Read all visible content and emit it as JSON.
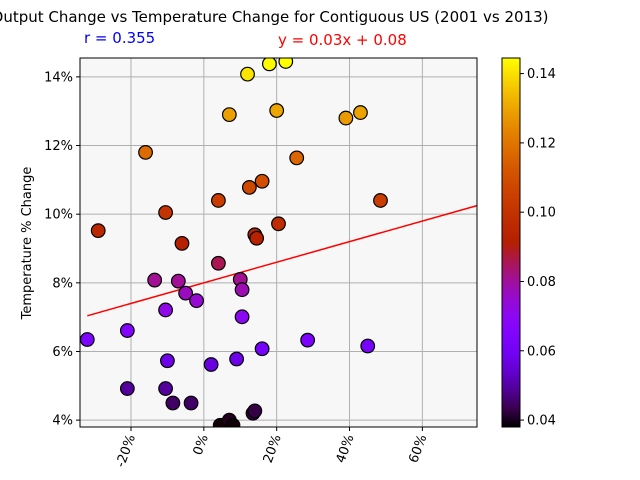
{
  "chart_data": {
    "type": "scatter",
    "title": "Output Change vs Temperature Change for Contiguous US (2001 vs 2013)",
    "xlabel": "",
    "ylabel": "Temperature % Change",
    "xlim": [
      -0.34,
      0.75
    ],
    "ylim": [
      0.038,
      0.1455
    ],
    "xticks": [
      -0.2,
      0.0,
      0.2,
      0.4,
      0.6
    ],
    "xtick_labels": [
      "-20%",
      "0%",
      "20%",
      "40%",
      "60%"
    ],
    "yticks": [
      0.04,
      0.06,
      0.08,
      0.1,
      0.12,
      0.14
    ],
    "ytick_labels": [
      "4%",
      "6%",
      "8%",
      "10%",
      "12%",
      "14%"
    ],
    "grid": true,
    "annotations": [
      {
        "text": "r = 0.355",
        "color": "#0000ff"
      },
      {
        "text": "y = 0.03x + 0.08",
        "color": "#ff0000"
      }
    ],
    "regression": {
      "slope": 0.03,
      "intercept": 0.08,
      "color": "#ff0000"
    },
    "colorbar": {
      "colormap": "gnuplot",
      "vmin": 0.038,
      "vmax": 0.1445,
      "ticks": [
        0.04,
        0.06,
        0.08,
        0.1,
        0.12,
        0.14
      ],
      "tick_labels": [
        "0.04",
        "0.06",
        "0.08",
        "0.10",
        "0.12",
        "0.14"
      ]
    },
    "points": [
      {
        "x": -0.32,
        "y": 0.0635
      },
      {
        "x": -0.29,
        "y": 0.0952
      },
      {
        "x": -0.21,
        "y": 0.0661
      },
      {
        "x": -0.21,
        "y": 0.0492
      },
      {
        "x": -0.16,
        "y": 0.118
      },
      {
        "x": -0.135,
        "y": 0.0808
      },
      {
        "x": -0.105,
        "y": 0.1005
      },
      {
        "x": -0.105,
        "y": 0.0721
      },
      {
        "x": -0.1,
        "y": 0.0573
      },
      {
        "x": -0.105,
        "y": 0.0492
      },
      {
        "x": -0.085,
        "y": 0.045
      },
      {
        "x": -0.07,
        "y": 0.0805
      },
      {
        "x": -0.06,
        "y": 0.0915
      },
      {
        "x": -0.05,
        "y": 0.077
      },
      {
        "x": -0.035,
        "y": 0.045
      },
      {
        "x": -0.02,
        "y": 0.0748
      },
      {
        "x": 0.02,
        "y": 0.0562
      },
      {
        "x": 0.04,
        "y": 0.104
      },
      {
        "x": 0.04,
        "y": 0.0857
      },
      {
        "x": 0.045,
        "y": 0.0385
      },
      {
        "x": 0.07,
        "y": 0.129
      },
      {
        "x": 0.07,
        "y": 0.04
      },
      {
        "x": 0.08,
        "y": 0.0385
      },
      {
        "x": 0.09,
        "y": 0.0578
      },
      {
        "x": 0.1,
        "y": 0.081
      },
      {
        "x": 0.105,
        "y": 0.078
      },
      {
        "x": 0.105,
        "y": 0.0701
      },
      {
        "x": 0.12,
        "y": 0.1408
      },
      {
        "x": 0.125,
        "y": 0.1078
      },
      {
        "x": 0.135,
        "y": 0.042
      },
      {
        "x": 0.14,
        "y": 0.0427
      },
      {
        "x": 0.14,
        "y": 0.094
      },
      {
        "x": 0.145,
        "y": 0.093
      },
      {
        "x": 0.16,
        "y": 0.1096
      },
      {
        "x": 0.16,
        "y": 0.0608
      },
      {
        "x": 0.18,
        "y": 0.1438
      },
      {
        "x": 0.2,
        "y": 0.1302
      },
      {
        "x": 0.205,
        "y": 0.0972
      },
      {
        "x": 0.225,
        "y": 0.1445
      },
      {
        "x": 0.255,
        "y": 0.1164
      },
      {
        "x": 0.285,
        "y": 0.0633
      },
      {
        "x": 0.39,
        "y": 0.128
      },
      {
        "x": 0.43,
        "y": 0.1296
      },
      {
        "x": 0.45,
        "y": 0.0616
      },
      {
        "x": 0.485,
        "y": 0.104
      }
    ]
  }
}
